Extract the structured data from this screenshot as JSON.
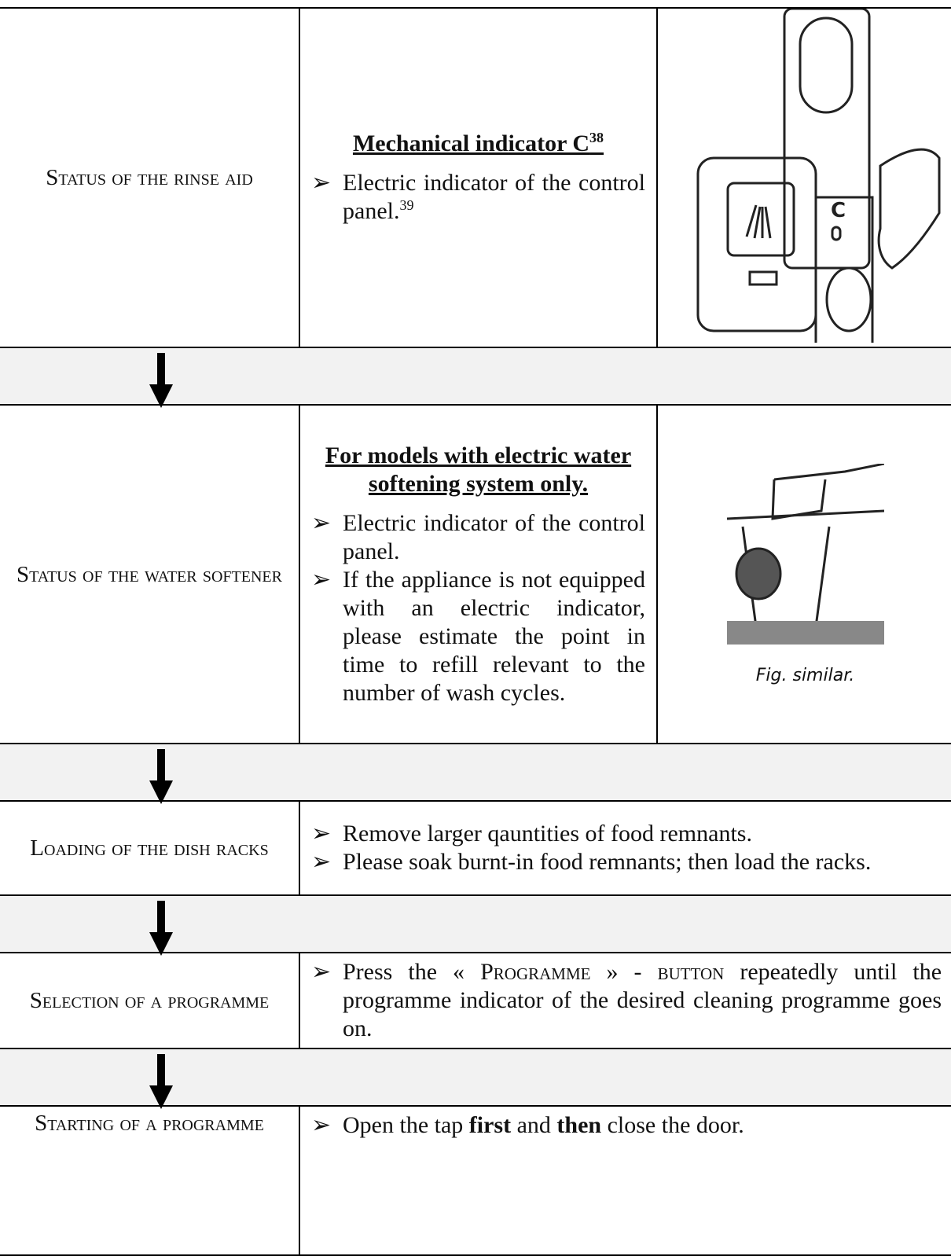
{
  "rows": [
    {
      "label": "Status of the rinse aid",
      "heading": {
        "text": "Mechanical indicator C",
        "sup": "38"
      },
      "bullets": [
        [
          {
            "text": "Electric indicator of the control panel."
          },
          {
            "text": "39",
            "sup": true
          }
        ]
      ]
    },
    {
      "label": "Status of the water softener",
      "heading": {
        "text": "For models with electric water softening system only."
      },
      "bullets": [
        [
          {
            "text": "Electric indicator of the control panel."
          }
        ],
        [
          {
            "text": "If the appliance is not equipped with an electric indicator, please estimate the point in time to refill relevant to the number of wash cycles."
          }
        ]
      ],
      "caption": "Fig. similar."
    },
    {
      "label": "Loading of the dish racks",
      "bullets": [
        [
          {
            "text": "Remove larger qauntities of food remnants."
          }
        ],
        [
          {
            "text": "Please soak burnt-in food remnants; then load the racks."
          }
        ]
      ]
    },
    {
      "label": "Selection of a programme",
      "bullets": [
        [
          {
            "text": "Press the « "
          },
          {
            "text": "Programme",
            "smallcaps": true
          },
          {
            "text": " » - "
          },
          {
            "text": "button",
            "smallcaps": true
          },
          {
            "text": " repeatedly until the programme indicator of the desired cleaning programme goes on."
          }
        ]
      ]
    },
    {
      "label": "Starting of a programme",
      "bullets": [
        [
          {
            "text": "Open the tap "
          },
          {
            "text": "first",
            "bold": true
          },
          {
            "text": " and "
          },
          {
            "text": "then",
            "bold": true
          },
          {
            "text": " close the door."
          }
        ]
      ]
    }
  ]
}
